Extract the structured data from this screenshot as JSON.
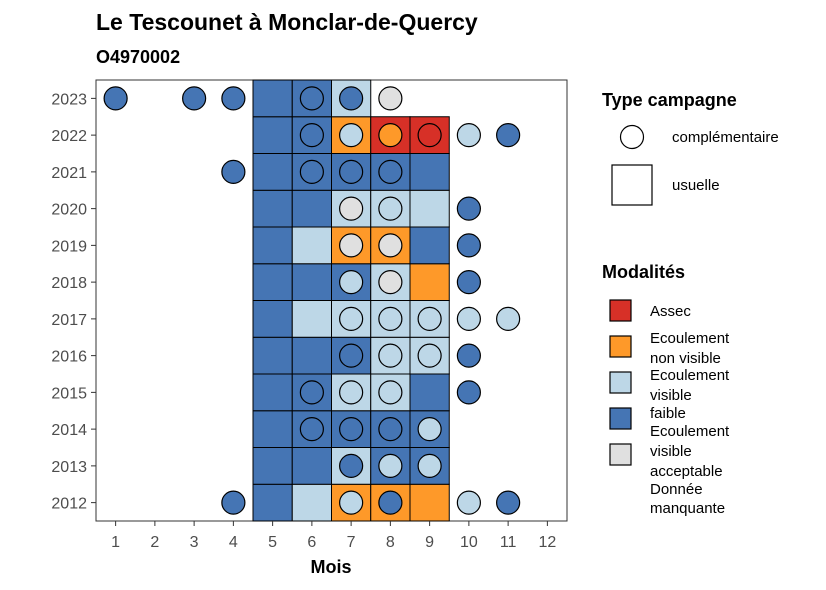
{
  "chart_data": {
    "type": "heatmap",
    "title": "Le Tescounet à Monclar-de-Quercy",
    "subtitle": "O4970002",
    "xlabel": "Mois",
    "ylabel": "",
    "x_ticks": [
      "1",
      "2",
      "3",
      "4",
      "5",
      "6",
      "7",
      "8",
      "9",
      "10",
      "11",
      "12"
    ],
    "y_ticks": [
      "2012",
      "2013",
      "2014",
      "2015",
      "2016",
      "2017",
      "2018",
      "2019",
      "2020",
      "2021",
      "2022",
      "2023"
    ],
    "xlim": [
      0.5,
      12.5
    ],
    "ylim": [
      2011.5,
      2023.5
    ],
    "grid": false,
    "legend_position": "right",
    "colors": {
      "assec": "#d73027",
      "ecoulement_non_visible": "#fe9929",
      "ecoulement_visible_faible": "#bdd7e7",
      "ecoulement_visible_acceptable": "#4575b4",
      "donnee_manquante": "#e0e0e0"
    },
    "legend_type": {
      "title": "Type campagne",
      "entries": [
        {
          "key": "complementaire",
          "label": "complémentaire",
          "shape": "circle"
        },
        {
          "key": "usuelle",
          "label": "usuelle",
          "shape": "square"
        }
      ]
    },
    "legend_modalites": {
      "title": "Modalités",
      "entries": [
        {
          "key": "assec",
          "label_lines": [
            "Assec"
          ]
        },
        {
          "key": "ecoulement_non_visible",
          "label_lines": [
            "Ecoulement",
            "non visible"
          ]
        },
        {
          "key": "ecoulement_visible_faible",
          "label_lines": [
            "Ecoulement",
            "visible",
            "faible"
          ]
        },
        {
          "key": "ecoulement_visible_acceptable",
          "label_lines": [
            "Ecoulement",
            "visible",
            "acceptable"
          ]
        },
        {
          "key": "donnee_manquante",
          "label_lines": [
            "Donnée",
            "manquante"
          ]
        }
      ]
    },
    "tiles": [
      {
        "year": 2012,
        "month": 5,
        "value": "ecoulement_visible_acceptable"
      },
      {
        "year": 2012,
        "month": 6,
        "value": "ecoulement_visible_faible"
      },
      {
        "year": 2012,
        "month": 7,
        "value": "ecoulement_non_visible"
      },
      {
        "year": 2012,
        "month": 8,
        "value": "ecoulement_non_visible"
      },
      {
        "year": 2012,
        "month": 9,
        "value": "ecoulement_non_visible"
      },
      {
        "year": 2013,
        "month": 5,
        "value": "ecoulement_visible_acceptable"
      },
      {
        "year": 2013,
        "month": 6,
        "value": "ecoulement_visible_acceptable"
      },
      {
        "year": 2013,
        "month": 7,
        "value": "ecoulement_visible_faible"
      },
      {
        "year": 2013,
        "month": 8,
        "value": "ecoulement_visible_acceptable"
      },
      {
        "year": 2013,
        "month": 9,
        "value": "ecoulement_visible_acceptable"
      },
      {
        "year": 2014,
        "month": 5,
        "value": "ecoulement_visible_acceptable"
      },
      {
        "year": 2014,
        "month": 6,
        "value": "ecoulement_visible_acceptable"
      },
      {
        "year": 2014,
        "month": 7,
        "value": "ecoulement_visible_acceptable"
      },
      {
        "year": 2014,
        "month": 8,
        "value": "ecoulement_visible_acceptable"
      },
      {
        "year": 2014,
        "month": 9,
        "value": "ecoulement_visible_acceptable"
      },
      {
        "year": 2015,
        "month": 5,
        "value": "ecoulement_visible_acceptable"
      },
      {
        "year": 2015,
        "month": 6,
        "value": "ecoulement_visible_acceptable"
      },
      {
        "year": 2015,
        "month": 7,
        "value": "ecoulement_visible_faible"
      },
      {
        "year": 2015,
        "month": 8,
        "value": "ecoulement_visible_faible"
      },
      {
        "year": 2015,
        "month": 9,
        "value": "ecoulement_visible_acceptable"
      },
      {
        "year": 2016,
        "month": 5,
        "value": "ecoulement_visible_acceptable"
      },
      {
        "year": 2016,
        "month": 6,
        "value": "ecoulement_visible_acceptable"
      },
      {
        "year": 2016,
        "month": 7,
        "value": "ecoulement_visible_acceptable"
      },
      {
        "year": 2016,
        "month": 8,
        "value": "ecoulement_visible_faible"
      },
      {
        "year": 2016,
        "month": 9,
        "value": "ecoulement_visible_faible"
      },
      {
        "year": 2017,
        "month": 5,
        "value": "ecoulement_visible_acceptable"
      },
      {
        "year": 2017,
        "month": 6,
        "value": "ecoulement_visible_faible"
      },
      {
        "year": 2017,
        "month": 7,
        "value": "ecoulement_visible_faible"
      },
      {
        "year": 2017,
        "month": 8,
        "value": "ecoulement_visible_faible"
      },
      {
        "year": 2017,
        "month": 9,
        "value": "ecoulement_visible_faible"
      },
      {
        "year": 2018,
        "month": 5,
        "value": "ecoulement_visible_acceptable"
      },
      {
        "year": 2018,
        "month": 6,
        "value": "ecoulement_visible_acceptable"
      },
      {
        "year": 2018,
        "month": 7,
        "value": "ecoulement_visible_acceptable"
      },
      {
        "year": 2018,
        "month": 8,
        "value": "ecoulement_visible_faible"
      },
      {
        "year": 2018,
        "month": 9,
        "value": "ecoulement_non_visible"
      },
      {
        "year": 2019,
        "month": 5,
        "value": "ecoulement_visible_acceptable"
      },
      {
        "year": 2019,
        "month": 6,
        "value": "ecoulement_visible_faible"
      },
      {
        "year": 2019,
        "month": 7,
        "value": "ecoulement_non_visible"
      },
      {
        "year": 2019,
        "month": 8,
        "value": "ecoulement_non_visible"
      },
      {
        "year": 2019,
        "month": 9,
        "value": "ecoulement_visible_acceptable"
      },
      {
        "year": 2020,
        "month": 5,
        "value": "ecoulement_visible_acceptable"
      },
      {
        "year": 2020,
        "month": 6,
        "value": "ecoulement_visible_acceptable"
      },
      {
        "year": 2020,
        "month": 7,
        "value": "ecoulement_visible_faible"
      },
      {
        "year": 2020,
        "month": 8,
        "value": "ecoulement_visible_faible"
      },
      {
        "year": 2020,
        "month": 9,
        "value": "ecoulement_visible_faible"
      },
      {
        "year": 2021,
        "month": 5,
        "value": "ecoulement_visible_acceptable"
      },
      {
        "year": 2021,
        "month": 6,
        "value": "ecoulement_visible_acceptable"
      },
      {
        "year": 2021,
        "month": 7,
        "value": "ecoulement_visible_acceptable"
      },
      {
        "year": 2021,
        "month": 8,
        "value": "ecoulement_visible_acceptable"
      },
      {
        "year": 2021,
        "month": 9,
        "value": "ecoulement_visible_acceptable"
      },
      {
        "year": 2022,
        "month": 5,
        "value": "ecoulement_visible_acceptable"
      },
      {
        "year": 2022,
        "month": 6,
        "value": "ecoulement_visible_acceptable"
      },
      {
        "year": 2022,
        "month": 7,
        "value": "ecoulement_non_visible"
      },
      {
        "year": 2022,
        "month": 8,
        "value": "assec"
      },
      {
        "year": 2022,
        "month": 9,
        "value": "assec"
      },
      {
        "year": 2023,
        "month": 5,
        "value": "ecoulement_visible_acceptable"
      },
      {
        "year": 2023,
        "month": 6,
        "value": "ecoulement_visible_acceptable"
      },
      {
        "year": 2023,
        "month": 7,
        "value": "ecoulement_visible_faible"
      }
    ],
    "points": [
      {
        "year": 2012,
        "month": 4,
        "value": "ecoulement_visible_acceptable"
      },
      {
        "year": 2012,
        "month": 7,
        "value": "ecoulement_visible_faible"
      },
      {
        "year": 2012,
        "month": 8,
        "value": "ecoulement_visible_acceptable"
      },
      {
        "year": 2012,
        "month": 10,
        "value": "ecoulement_visible_faible"
      },
      {
        "year": 2012,
        "month": 11,
        "value": "ecoulement_visible_acceptable"
      },
      {
        "year": 2013,
        "month": 7,
        "value": "ecoulement_visible_acceptable"
      },
      {
        "year": 2013,
        "month": 8,
        "value": "ecoulement_visible_faible"
      },
      {
        "year": 2013,
        "month": 9,
        "value": "ecoulement_visible_faible"
      },
      {
        "year": 2014,
        "month": 6,
        "value": "ecoulement_visible_acceptable"
      },
      {
        "year": 2014,
        "month": 7,
        "value": "ecoulement_visible_acceptable"
      },
      {
        "year": 2014,
        "month": 8,
        "value": "ecoulement_visible_acceptable"
      },
      {
        "year": 2014,
        "month": 9,
        "value": "ecoulement_visible_faible"
      },
      {
        "year": 2015,
        "month": 6,
        "value": "ecoulement_visible_acceptable"
      },
      {
        "year": 2015,
        "month": 7,
        "value": "ecoulement_visible_faible"
      },
      {
        "year": 2015,
        "month": 8,
        "value": "ecoulement_visible_faible"
      },
      {
        "year": 2015,
        "month": 10,
        "value": "ecoulement_visible_acceptable"
      },
      {
        "year": 2016,
        "month": 7,
        "value": "ecoulement_visible_acceptable"
      },
      {
        "year": 2016,
        "month": 8,
        "value": "ecoulement_visible_faible"
      },
      {
        "year": 2016,
        "month": 9,
        "value": "ecoulement_visible_faible"
      },
      {
        "year": 2016,
        "month": 10,
        "value": "ecoulement_visible_acceptable"
      },
      {
        "year": 2017,
        "month": 7,
        "value": "ecoulement_visible_faible"
      },
      {
        "year": 2017,
        "month": 8,
        "value": "ecoulement_visible_faible"
      },
      {
        "year": 2017,
        "month": 9,
        "value": "ecoulement_visible_faible"
      },
      {
        "year": 2017,
        "month": 10,
        "value": "ecoulement_visible_faible"
      },
      {
        "year": 2017,
        "month": 11,
        "value": "ecoulement_visible_faible"
      },
      {
        "year": 2018,
        "month": 7,
        "value": "ecoulement_visible_faible"
      },
      {
        "year": 2018,
        "month": 8,
        "value": "donnee_manquante"
      },
      {
        "year": 2018,
        "month": 10,
        "value": "ecoulement_visible_acceptable"
      },
      {
        "year": 2019,
        "month": 7,
        "value": "donnee_manquante"
      },
      {
        "year": 2019,
        "month": 8,
        "value": "donnee_manquante"
      },
      {
        "year": 2019,
        "month": 10,
        "value": "ecoulement_visible_acceptable"
      },
      {
        "year": 2020,
        "month": 7,
        "value": "donnee_manquante"
      },
      {
        "year": 2020,
        "month": 8,
        "value": "ecoulement_visible_faible"
      },
      {
        "year": 2020,
        "month": 10,
        "value": "ecoulement_visible_acceptable"
      },
      {
        "year": 2021,
        "month": 4,
        "value": "ecoulement_visible_acceptable"
      },
      {
        "year": 2021,
        "month": 6,
        "value": "ecoulement_visible_acceptable"
      },
      {
        "year": 2021,
        "month": 7,
        "value": "ecoulement_visible_acceptable"
      },
      {
        "year": 2021,
        "month": 8,
        "value": "ecoulement_visible_acceptable"
      },
      {
        "year": 2022,
        "month": 6,
        "value": "ecoulement_visible_acceptable"
      },
      {
        "year": 2022,
        "month": 7,
        "value": "ecoulement_visible_faible"
      },
      {
        "year": 2022,
        "month": 8,
        "value": "ecoulement_non_visible"
      },
      {
        "year": 2022,
        "month": 9,
        "value": "assec"
      },
      {
        "year": 2022,
        "month": 10,
        "value": "ecoulement_visible_faible"
      },
      {
        "year": 2022,
        "month": 11,
        "value": "ecoulement_visible_acceptable"
      },
      {
        "year": 2023,
        "month": 1,
        "value": "ecoulement_visible_acceptable"
      },
      {
        "year": 2023,
        "month": 3,
        "value": "ecoulement_visible_acceptable"
      },
      {
        "year": 2023,
        "month": 4,
        "value": "ecoulement_visible_acceptable"
      },
      {
        "year": 2023,
        "month": 6,
        "value": "ecoulement_visible_acceptable"
      },
      {
        "year": 2023,
        "month": 7,
        "value": "ecoulement_visible_acceptable"
      },
      {
        "year": 2023,
        "month": 8,
        "value": "donnee_manquante"
      }
    ]
  }
}
